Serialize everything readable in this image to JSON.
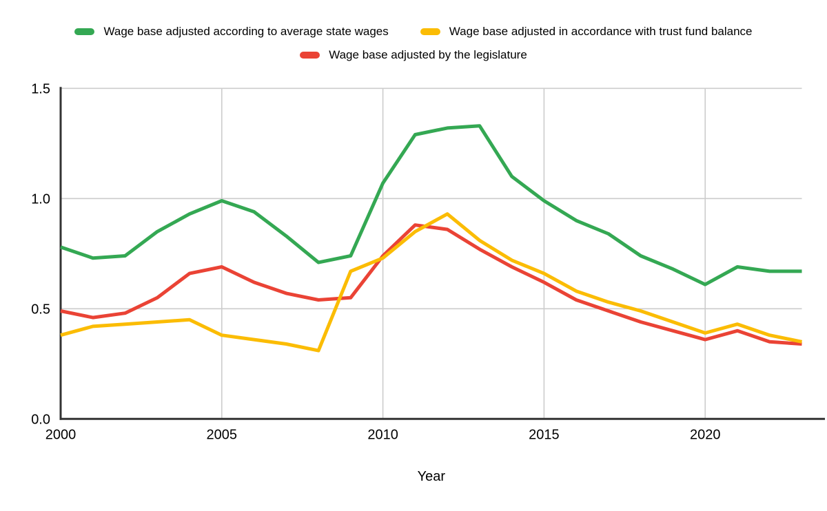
{
  "chart_data": {
    "type": "line",
    "title": "",
    "xlabel": "Year",
    "ylabel": "",
    "x": [
      2000,
      2001,
      2002,
      2003,
      2004,
      2005,
      2006,
      2007,
      2008,
      2009,
      2010,
      2011,
      2012,
      2013,
      2014,
      2015,
      2016,
      2017,
      2018,
      2019,
      2020,
      2021,
      2022,
      2023
    ],
    "series": [
      {
        "name": "Wage base adjusted according to average state wages",
        "color": "#34a853",
        "values": [
          0.78,
          0.73,
          0.74,
          0.85,
          0.93,
          0.99,
          0.94,
          0.83,
          0.71,
          0.74,
          1.07,
          1.29,
          1.32,
          1.33,
          1.1,
          0.99,
          0.9,
          0.84,
          0.74,
          0.68,
          0.61,
          0.69,
          0.67,
          0.67
        ]
      },
      {
        "name": "Wage base adjusted in accordance with trust fund balance",
        "color": "#fbbc04",
        "values": [
          0.38,
          0.42,
          0.43,
          0.44,
          0.45,
          0.38,
          0.36,
          0.34,
          0.31,
          0.67,
          0.73,
          0.85,
          0.93,
          0.81,
          0.72,
          0.66,
          0.58,
          0.53,
          0.49,
          0.44,
          0.39,
          0.43,
          0.38,
          0.35
        ]
      },
      {
        "name": "Wage base adjusted by the legislature",
        "color": "#ea4335",
        "values": [
          0.49,
          0.46,
          0.48,
          0.55,
          0.66,
          0.69,
          0.62,
          0.57,
          0.54,
          0.55,
          0.74,
          0.88,
          0.86,
          0.77,
          0.69,
          0.62,
          0.54,
          0.49,
          0.44,
          0.4,
          0.36,
          0.4,
          0.35,
          0.34
        ]
      }
    ],
    "xlim": [
      2000,
      2023
    ],
    "ylim": [
      0,
      1.5
    ],
    "x_ticks": [
      2000,
      2005,
      2010,
      2015,
      2020
    ],
    "y_ticks": [
      0,
      0.5,
      1.0,
      1.5
    ],
    "y_tick_labels": [
      "0.0",
      "0.5",
      "1.0",
      "1.5"
    ],
    "grid": true,
    "legend_position": "top",
    "legend_rows": [
      [
        0,
        1
      ],
      [
        2
      ]
    ],
    "draw_order": [
      0,
      2,
      1
    ],
    "axis_color": "#333333",
    "grid_color": "#cccccc",
    "text_color": "#000000",
    "background": "#ffffff"
  }
}
